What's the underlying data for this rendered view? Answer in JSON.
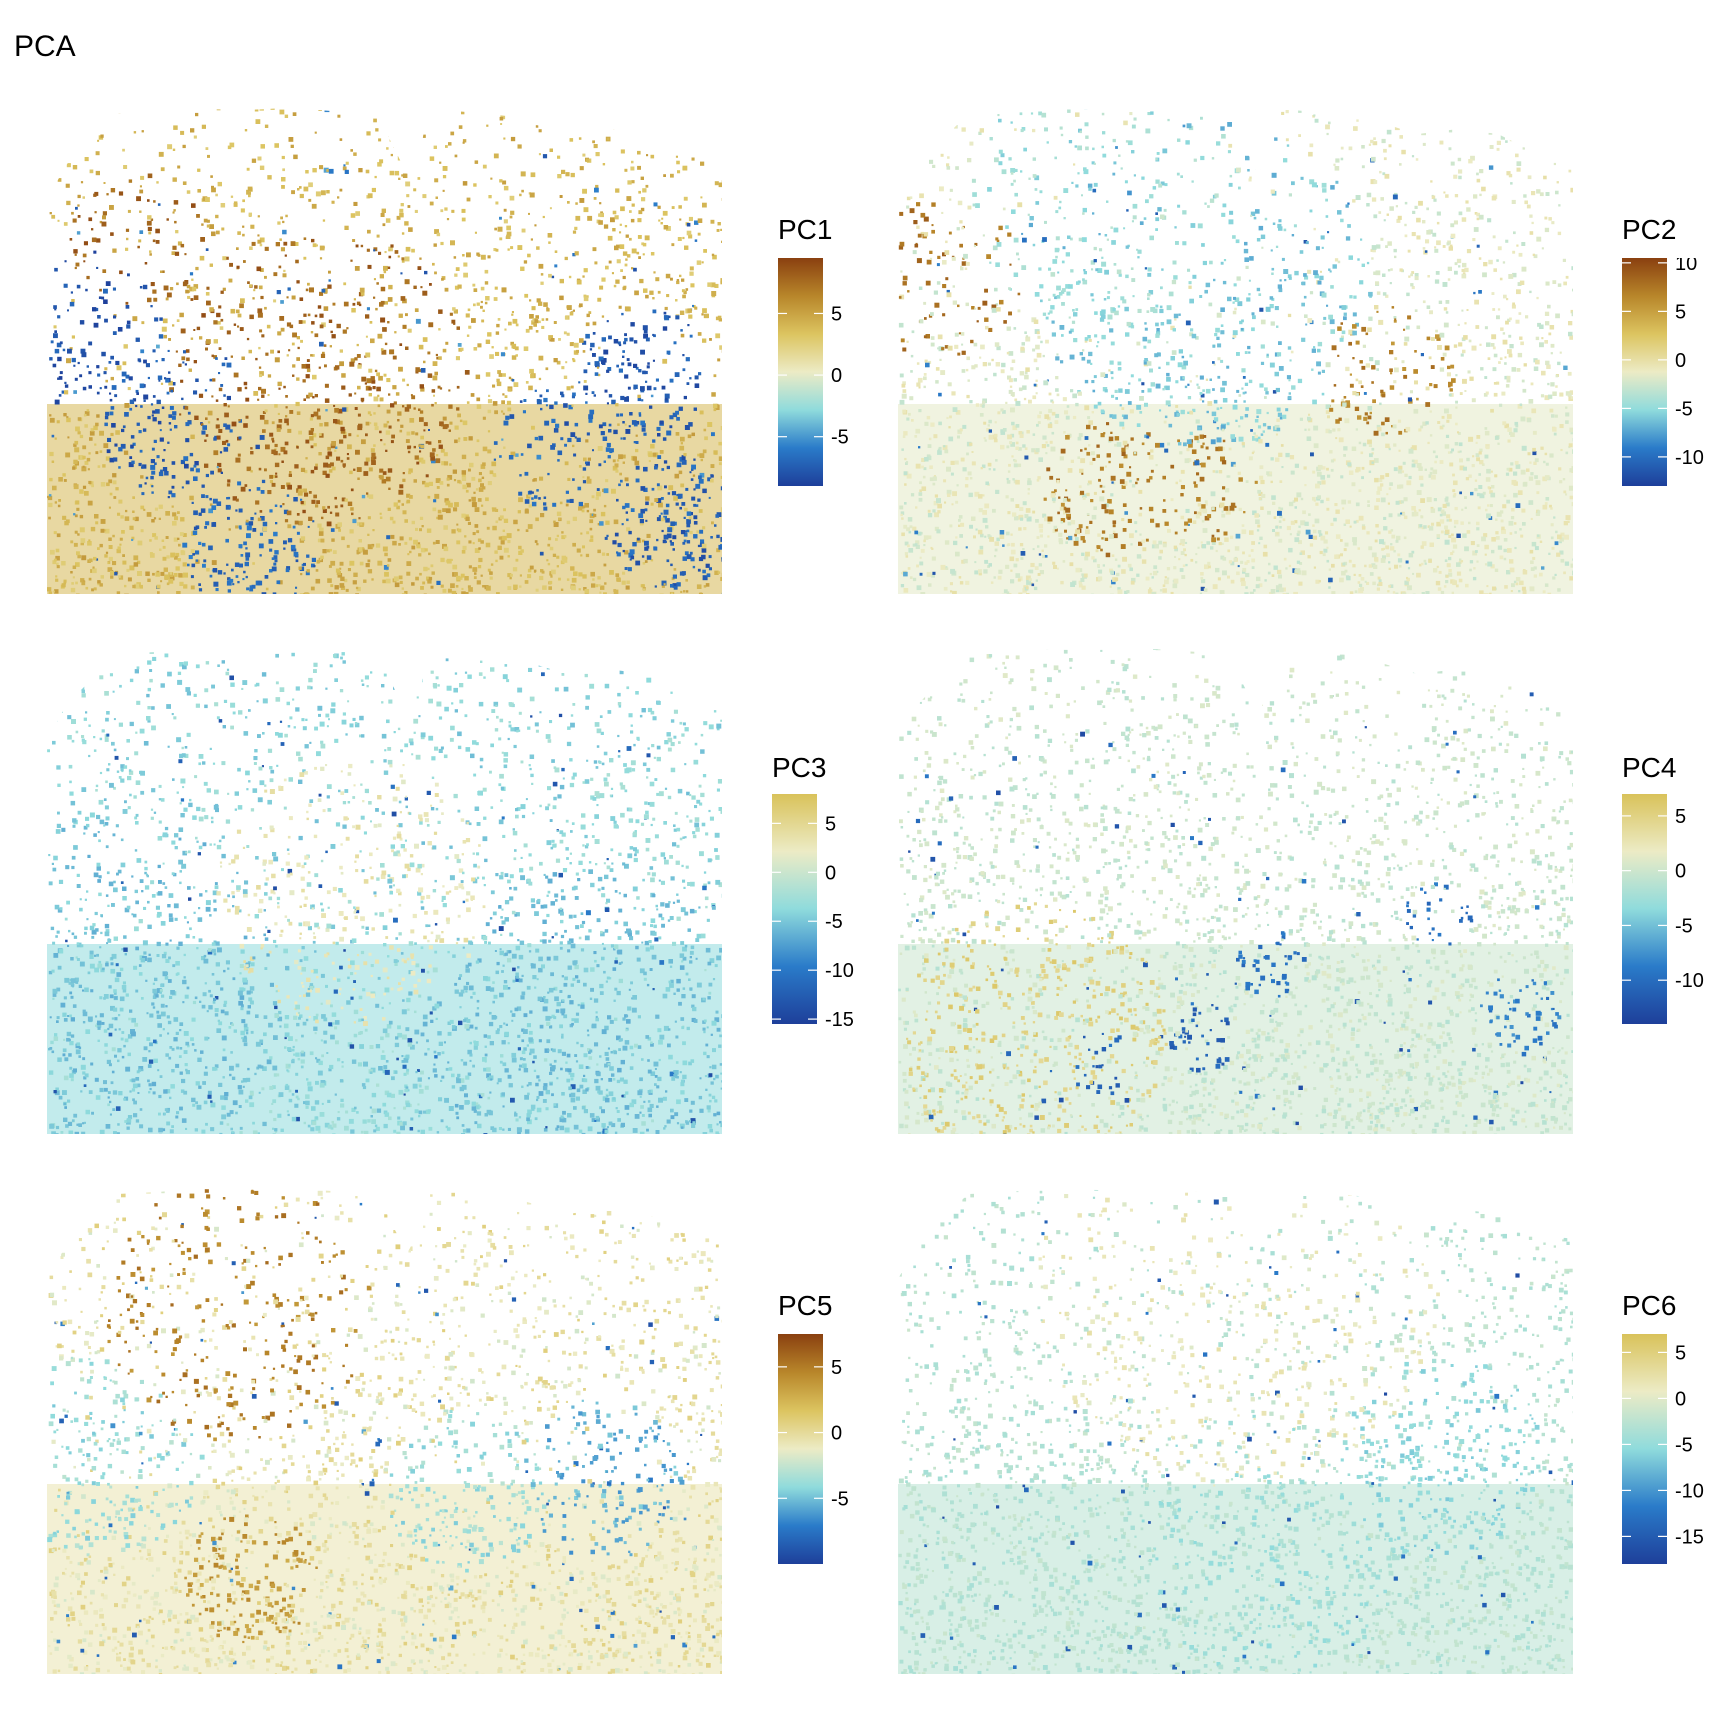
{
  "title": "PCA",
  "chart_data": [
    {
      "type": "heatmap",
      "title": "",
      "legend_title": "PC1",
      "legend_placement": "right",
      "grid": false,
      "colorbar_ticks": [
        5,
        0,
        -5
      ],
      "range": [
        -9,
        9.5
      ],
      "colors": [
        "#1e3f9a",
        "#2a7bc9",
        "#8fdbdc",
        "#ecebc5",
        "#dcc460",
        "#b8862a",
        "#8a4010"
      ]
    },
    {
      "type": "heatmap",
      "title": "",
      "legend_title": "PC2",
      "legend_placement": "right",
      "grid": false,
      "colorbar_ticks": [
        10,
        5,
        0,
        -5,
        -10
      ],
      "range": [
        -13,
        10.5
      ],
      "colors": [
        "#1e3f9a",
        "#2a7bc9",
        "#8fdbdc",
        "#ecebc5",
        "#dcc460",
        "#b8862a",
        "#8a4010"
      ]
    },
    {
      "type": "heatmap",
      "title": "",
      "legend_title": "PC3",
      "legend_placement": "right",
      "grid": false,
      "colorbar_ticks": [
        5,
        0,
        -5,
        -10,
        -15
      ],
      "range": [
        -15.5,
        8
      ],
      "colors": [
        "#1e3f9a",
        "#2a7bc9",
        "#8fdbdc",
        "#ecebc5",
        "#d9c25a"
      ]
    },
    {
      "type": "heatmap",
      "title": "",
      "legend_title": "PC4",
      "legend_placement": "right",
      "grid": false,
      "colorbar_ticks": [
        5,
        0,
        -5,
        -10
      ],
      "range": [
        -14,
        7
      ],
      "colors": [
        "#1e3f9a",
        "#2a7bc9",
        "#8fdbdc",
        "#ecebc5",
        "#d9c25a"
      ]
    },
    {
      "type": "heatmap",
      "title": "",
      "legend_title": "PC5",
      "legend_placement": "right",
      "grid": false,
      "colorbar_ticks": [
        5,
        0,
        -5
      ],
      "range": [
        -10,
        7.5
      ],
      "colors": [
        "#1e3f9a",
        "#2a7bc9",
        "#8fdbdc",
        "#ecebc5",
        "#dcc460",
        "#b8862a",
        "#8a4010"
      ]
    },
    {
      "type": "heatmap",
      "title": "",
      "legend_title": "PC6",
      "legend_placement": "right",
      "grid": false,
      "colorbar_ticks": [
        5,
        0,
        -5,
        -10,
        -15
      ],
      "range": [
        -18,
        7
      ],
      "colors": [
        "#1e3f9a",
        "#2a7bc9",
        "#8fdbdc",
        "#ecebc5",
        "#d9c25a"
      ]
    }
  ]
}
